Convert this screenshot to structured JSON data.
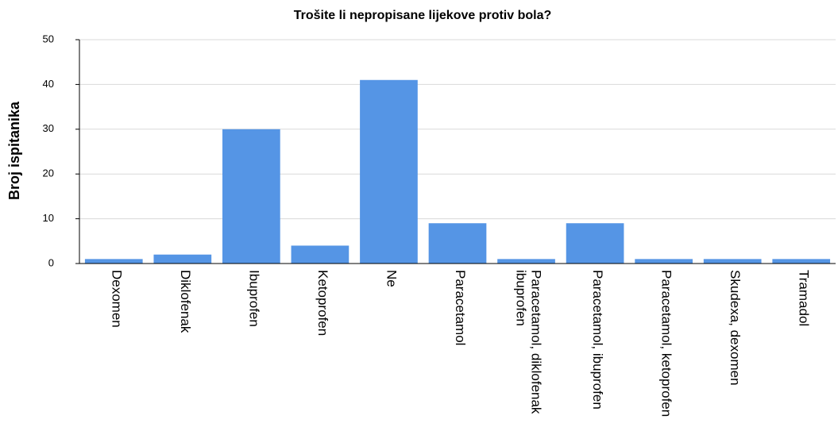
{
  "chart_data": {
    "type": "bar",
    "title": "Trošite li nepropisane lijekove protiv bola?",
    "y_label": "Broj ispitanika",
    "categories": [
      "Dexomen",
      "Diklofenak",
      "Ibuprofen",
      "Ketoprofen",
      "Ne",
      "Paracetamol",
      "Paracetamol, diklofenak ibuprofen",
      "Paracetamol, ibuprofen",
      "Paracetamol, ketoprofen",
      "Skudexa, dexomen",
      "Tramadol"
    ],
    "values": [
      1,
      2,
      30,
      4,
      41,
      9,
      1,
      9,
      1,
      1,
      1
    ],
    "color": "#5595e5",
    "ylim": [
      0,
      50
    ],
    "yticks": [
      0,
      10,
      20,
      30,
      40,
      50
    ],
    "grid": true
  }
}
